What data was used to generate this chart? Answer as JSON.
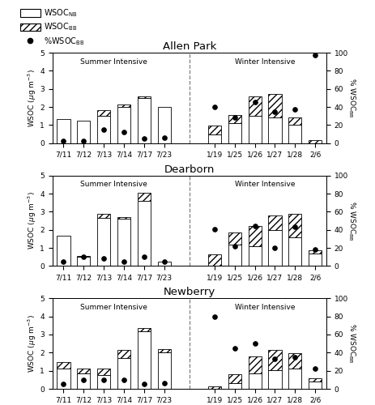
{
  "sites": [
    "Allen Park",
    "Dearborn",
    "Newberry"
  ],
  "dates_summer": [
    "7/11",
    "7/12",
    "7/13",
    "7/14",
    "7/17",
    "7/23"
  ],
  "dates_winter": [
    "1/19",
    "1/25",
    "1/26",
    "1/27",
    "1/28",
    "2/6"
  ],
  "allen_park": {
    "summer_NB": [
      1.35,
      1.25,
      1.5,
      2.0,
      2.5,
      2.0
    ],
    "summer_BB": [
      0.0,
      0.0,
      0.3,
      0.15,
      0.1,
      0.0
    ],
    "summer_pct": [
      2,
      2,
      15,
      12,
      5,
      6
    ],
    "winter_NB": [
      0.5,
      1.1,
      1.5,
      1.4,
      1.0,
      0.0
    ],
    "winter_BB": [
      0.45,
      0.45,
      1.1,
      1.3,
      0.4,
      0.15
    ],
    "winter_pct": [
      40,
      28,
      45,
      35,
      37,
      97
    ]
  },
  "dearborn": {
    "summer_NB": [
      1.65,
      0.5,
      2.65,
      2.6,
      3.6,
      0.25
    ],
    "summer_BB": [
      0.0,
      0.05,
      0.25,
      0.1,
      0.45,
      0.0
    ],
    "summer_pct": [
      5,
      10,
      8,
      5,
      10,
      5
    ],
    "winter_NB": [
      0.0,
      1.2,
      1.1,
      2.0,
      1.6,
      0.7
    ],
    "winter_BB": [
      0.65,
      0.65,
      1.1,
      0.8,
      1.3,
      0.15
    ],
    "winter_pct": [
      41,
      22,
      44,
      20,
      43,
      18
    ]
  },
  "newberry": {
    "summer_NB": [
      1.1,
      0.85,
      0.75,
      1.7,
      3.2,
      2.0
    ],
    "summer_BB": [
      0.4,
      0.25,
      0.35,
      0.45,
      0.15,
      0.2
    ],
    "summer_pct": [
      5,
      10,
      10,
      10,
      5,
      6
    ],
    "winter_NB": [
      0.0,
      0.3,
      0.85,
      1.05,
      1.1,
      0.4
    ],
    "winter_BB": [
      0.15,
      0.5,
      0.95,
      1.1,
      0.85,
      0.2
    ],
    "winter_pct": [
      80,
      45,
      50,
      33,
      35,
      22
    ]
  },
  "ylim_left": [
    0,
    5
  ],
  "ylim_right": [
    0,
    100
  ],
  "bar_width": 0.65,
  "legend_labels": [
    "WSOC_NB",
    "WSOC_BB",
    "%WSOC_BB"
  ]
}
